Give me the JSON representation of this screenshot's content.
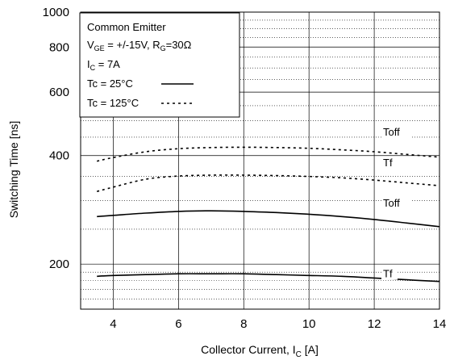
{
  "chart_data": {
    "type": "line",
    "xlabel_main": "Collector Current, I",
    "xlabel_sub": "C",
    "xlabel_unit": " [A]",
    "ylabel": "Switching Time [ns]",
    "xlim": [
      3,
      14
    ],
    "ylim": [
      150,
      1000
    ],
    "yscale": "log",
    "x_ticks": [
      "4",
      "6",
      "8",
      "10",
      "12",
      "14"
    ],
    "y_ticks": [
      "200",
      "400",
      "600",
      "800",
      "1000"
    ],
    "grid": true,
    "legend": {
      "position": "top-left",
      "line1": "Common Emitter",
      "line2": {
        "v": "V",
        "v_sub": "GE",
        "mid": " = +/-15V, R",
        "r_sub": "G",
        "end": "=30Ω"
      },
      "line3": {
        "i": "I",
        "i_sub": "C",
        "end": " = 7A"
      },
      "entry1": {
        "label": "Tc =  25°C",
        "style": "solid"
      },
      "entry2": {
        "label": "Tc = 125°C",
        "style": "dashed"
      }
    },
    "series": [
      {
        "name": "Toff",
        "condition": "Tc = 125°C",
        "style": "dashed",
        "x": [
          3.5,
          4,
          5,
          6,
          7,
          8,
          9,
          10,
          11,
          12,
          13,
          14
        ],
        "y": [
          386,
          395,
          410,
          418,
          421,
          422,
          421,
          419,
          415,
          410,
          403,
          396
        ]
      },
      {
        "name": "Tf",
        "condition": "Tc = 125°C",
        "style": "dashed",
        "x": [
          3.5,
          4,
          5,
          6,
          7,
          8,
          9,
          10,
          11,
          12,
          13,
          14
        ],
        "y": [
          318,
          327,
          344,
          351,
          353,
          353,
          352,
          350,
          347,
          342,
          336,
          330
        ]
      },
      {
        "name": "Toff",
        "condition": "Tc = 25°C",
        "style": "solid",
        "x": [
          3.5,
          4,
          5,
          6,
          7,
          8,
          9,
          10,
          11,
          12,
          13,
          14
        ],
        "y": [
          271,
          273,
          277,
          280,
          281,
          280,
          278,
          275,
          271,
          266,
          260,
          254
        ]
      },
      {
        "name": "Tf",
        "condition": "Tc = 25°C",
        "style": "solid",
        "x": [
          3.5,
          4,
          5,
          6,
          7,
          8,
          9,
          10,
          11,
          12,
          13,
          14
        ],
        "y": [
          185,
          186,
          187,
          188,
          188,
          188,
          187,
          186,
          185,
          183,
          181,
          179
        ]
      }
    ],
    "series_labels": [
      "Toff",
      "Tf",
      "Toff",
      "Tf"
    ]
  }
}
